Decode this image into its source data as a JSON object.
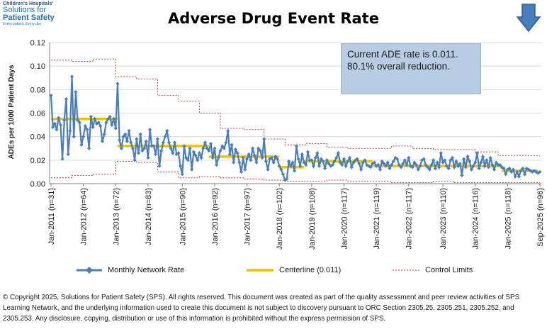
{
  "logo": {
    "line1": "Children's Hospitals'",
    "line2": "Solutions for",
    "line3": "Patient Safety",
    "line4": "Every patient. Every day."
  },
  "info_box": {
    "line1": "Current ADE rate is 0.011.",
    "line2": "80.1% overall reduction."
  },
  "colors": {
    "rate": "#4a7ebb",
    "centerline": "#f2c200",
    "control": "#c0392b",
    "arrow": "#4a7ebb",
    "info_box_bg": "#b8cce4"
  },
  "copyright": "© Copyright 2025, Solutions for Patient Safety (SPS).  All rights reserved.  This document was created as part of the quality assessment and peer review activities of SPS Learning Network, and the underlying information used to create this document is not subject to discovery pursuant to ORC Section 2305.25, 2305.251, 2305.252, and 2305.253. Any disclosure, copying, distribution or use of this information is prohibited without the express permission of SPS.",
  "chart_data": {
    "type": "line",
    "title": "Adverse Drug Event Rate",
    "ylabel": "ADEs per 1000 Patient Days",
    "ylim": [
      0,
      0.12
    ],
    "yticks": [
      "0.00",
      "0.02",
      "0.04",
      "0.06",
      "0.08",
      "0.10",
      "0.12"
    ],
    "xtick_labels": [
      "Jan-2011 (n=31)",
      "Jan-2012 (n=64)",
      "Jan-2013 (n=72)",
      "Jan-2014 (n=83)",
      "Jan-2015 (n=90)",
      "Jan-2016 (n=92)",
      "Jan-2017 (n=97)",
      "Jan-2018 (n=102)",
      "Jan-2019 (n=108)",
      "Jan-2020 (n=117)",
      "Jan-2021 (n=119)",
      "Jan-2022 (n=117)",
      "Jan-2023 (n=110)",
      "Jan-2024 (n=116)",
      "Jan-2025 (n=118)",
      "Sep-2025 (n=96)"
    ],
    "legend": [
      "Monthly Network Rate",
      "Centerline (0.011)",
      "Control Limits"
    ],
    "legend_position": "bottom",
    "grid": "horizontal",
    "x_start": "Jan-2011",
    "x_end": "Sep-2025",
    "series": [
      {
        "name": "Monthly Network Rate",
        "values": [
          0.075,
          0.048,
          0.051,
          0.046,
          0.056,
          0.05,
          0.021,
          0.054,
          0.072,
          0.025,
          0.045,
          0.091,
          0.04,
          0.078,
          0.054,
          0.052,
          0.033,
          0.04,
          0.049,
          0.046,
          0.03,
          0.057,
          0.048,
          0.055,
          0.051,
          0.052,
          0.049,
          0.036,
          0.042,
          0.052,
          0.055,
          0.057,
          0.05,
          0.055,
          0.047,
          0.085,
          0.037,
          0.03,
          0.04,
          0.042,
          0.036,
          0.045,
          0.035,
          0.03,
          0.02,
          0.038,
          0.026,
          0.042,
          0.028,
          0.03,
          0.036,
          0.022,
          0.046,
          0.032,
          0.032,
          0.025,
          0.038,
          0.015,
          0.028,
          0.035,
          0.04,
          0.045,
          0.035,
          0.03,
          0.026,
          0.035,
          0.025,
          0.026,
          0.015,
          0.008,
          0.032,
          0.022,
          0.02,
          0.03,
          0.012,
          0.027,
          0.024,
          0.02,
          0.026,
          0.022,
          0.03,
          0.035,
          0.03,
          0.028,
          0.034,
          0.022,
          0.03,
          0.016,
          0.022,
          0.028,
          0.032,
          0.03,
          0.035,
          0.045,
          0.025,
          0.033,
          0.018,
          0.029,
          0.026,
          0.018,
          0.01,
          0.022,
          0.012,
          0.021,
          0.025,
          0.02,
          0.03,
          0.024,
          0.018,
          0.03,
          0.028,
          0.022,
          0.038,
          0.019,
          0.012,
          0.021,
          0.022,
          0.018,
          0.023,
          0.021,
          0.015,
          0.012,
          0.008,
          0.003,
          0.004,
          0.019,
          0.015,
          0.018,
          0.011,
          0.032,
          0.021,
          0.015,
          0.025,
          0.018,
          0.016,
          0.027,
          0.02,
          0.02,
          0.015,
          0.022,
          0.026,
          0.015,
          0.021,
          0.019,
          0.013,
          0.02,
          0.017,
          0.015,
          0.016,
          0.019,
          0.022,
          0.026,
          0.018,
          0.016,
          0.021,
          0.015,
          0.019,
          0.022,
          0.014,
          0.018,
          0.02,
          0.021,
          0.017,
          0.012,
          0.018,
          0.02,
          0.016,
          0.015,
          0.014,
          0.017,
          0.018,
          0.015,
          0.016,
          0.012,
          0.019,
          0.017,
          0.015,
          0.018,
          0.013,
          0.016,
          0.019,
          0.022,
          0.021,
          0.016,
          0.014,
          0.017,
          0.02,
          0.016,
          0.022,
          0.015,
          0.014,
          0.018,
          0.016,
          0.012,
          0.015,
          0.02,
          0.021,
          0.016,
          0.014,
          0.012,
          0.016,
          0.02,
          0.013,
          0.018,
          0.014,
          0.026,
          0.018,
          0.02,
          0.015,
          0.013,
          0.02,
          0.022,
          0.014,
          0.019,
          0.015,
          0.017,
          0.007,
          0.021,
          0.014,
          0.023,
          0.019,
          0.012,
          0.015,
          0.018,
          0.026,
          0.013,
          0.018,
          0.023,
          0.015,
          0.02,
          0.014,
          0.022,
          0.016,
          0.012,
          0.018,
          0.016,
          0.016,
          0.014,
          0.013,
          0.008,
          0.012,
          0.013,
          0.01,
          0.012,
          0.006,
          0.01,
          0.006,
          0.011,
          0.013,
          0.008,
          0.013,
          0.012,
          0.011,
          0.01,
          0.011,
          0.01,
          0.009,
          0.01
        ]
      },
      {
        "name": "Centerline (0.011)",
        "segments": [
          {
            "from": 0,
            "to": 35,
            "value": 0.055
          },
          {
            "from": 35,
            "to": 83,
            "value": 0.032
          },
          {
            "from": 83,
            "to": 120,
            "value": 0.023
          },
          {
            "from": 120,
            "to": 133,
            "value": 0.014
          },
          {
            "from": 133,
            "to": 169,
            "value": 0.019
          },
          {
            "from": 169,
            "to": 237,
            "value": 0.015
          },
          {
            "from": 237,
            "to": 256,
            "value": 0.011
          }
        ]
      },
      {
        "name": "Control Limits",
        "upper": [
          0.105,
          0.104,
          0.106,
          0.091,
          0.089,
          0.075,
          0.07,
          0.06,
          0.047,
          0.046,
          0.038,
          0.033,
          0.034,
          0.031,
          0.03,
          0.03,
          0.032,
          0.03,
          0.029,
          0.029,
          0.027,
          0.024,
          0.024
        ],
        "lower": [
          0.005,
          0.007,
          0.008,
          0.019,
          0.018,
          0.01,
          0.005,
          0.006,
          0.005,
          0.004,
          0.003,
          0.002,
          0.002,
          0.003,
          0.002,
          0.002,
          0.001,
          0.001,
          0.002,
          0.001,
          0.001,
          0.001,
          0.001
        ]
      }
    ]
  }
}
